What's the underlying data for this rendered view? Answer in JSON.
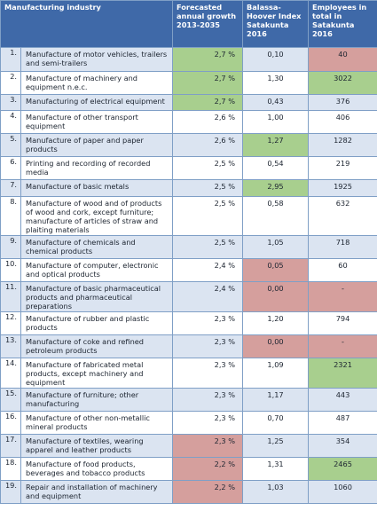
{
  "header": {
    "industry": "Manufacturing industry",
    "growth": "Forecasted annual growth 2013-2035",
    "balassa": "Balassa-Hoover Index Satakunta 2016",
    "employees": "Employees in total in Satakunta 2016"
  },
  "colors": {
    "header_bg": "#3f69a8",
    "highlight_green": "#a8cf8e",
    "highlight_red": "#d59f9d",
    "stripe": "#dbe4f1"
  },
  "rows": [
    {
      "num": "1.",
      "industry": "Manufacture of motor vehicles, trailers and semi-trailers",
      "growth": "2,7 %",
      "balassa": "0,10",
      "employees": "40"
    },
    {
      "num": "2.",
      "industry": "Manufacture of machinery and equipment n.e.c.",
      "growth": "2,7 %",
      "balassa": "1,30",
      "employees": "3022"
    },
    {
      "num": "3.",
      "industry": "Manufacturing of electrical equipment",
      "growth": "2,7 %",
      "balassa": "0,43",
      "employees": "376"
    },
    {
      "num": "4.",
      "industry": "Manufacture of other transport equipment",
      "growth": "2,6 %",
      "balassa": "1,00",
      "employees": "406"
    },
    {
      "num": "5.",
      "industry": "Manufacture of paper and paper products",
      "growth": "2,6 %",
      "balassa": "1,27",
      "employees": "1282"
    },
    {
      "num": "6.",
      "industry": "Printing and recording of recorded media",
      "growth": "2,5 %",
      "balassa": "0,54",
      "employees": "219"
    },
    {
      "num": "7.",
      "industry": "Manufacture of basic metals",
      "growth": "2,5 %",
      "balassa": "2,95",
      "employees": "1925"
    },
    {
      "num": "8.",
      "industry": "Manufacture of wood and of products of wood and cork, except furniture; manufacture of articles of straw and plaiting materials",
      "growth": "2,5 %",
      "balassa": "0,58",
      "employees": "632"
    },
    {
      "num": "9.",
      "industry": "Manufacture of chemicals and chemical products",
      "growth": "2,5 %",
      "balassa": "1,05",
      "employees": "718"
    },
    {
      "num": "10.",
      "industry": "Manufacture of computer, electronic and optical products",
      "growth": "2,4 %",
      "balassa": "0,05",
      "employees": "60"
    },
    {
      "num": "11.",
      "industry": "Manufacture of basic pharmaceutical products and pharmaceutical preparations",
      "growth": "2,4 %",
      "balassa": "0,00",
      "employees": "-"
    },
    {
      "num": "12.",
      "industry": "Manufacture of rubber and plastic products",
      "growth": "2,3 %",
      "balassa": "1,20",
      "employees": "794"
    },
    {
      "num": "13.",
      "industry": "Manufacture of coke and refined petroleum products",
      "growth": "2,3 %",
      "balassa": "0,00",
      "employees": "-"
    },
    {
      "num": "14.",
      "industry": "Manufacture of fabricated metal products, except machinery and equipment",
      "growth": "2,3 %",
      "balassa": "1,09",
      "employees": "2321"
    },
    {
      "num": "15.",
      "industry": "Manufacture of furniture; other manufacturing",
      "growth": "2,3 %",
      "balassa": "1,17",
      "employees": "443"
    },
    {
      "num": "16.",
      "industry": "Manufacture of other non-metallic mineral products",
      "growth": "2,3 %",
      "balassa": "0,70",
      "employees": "487"
    },
    {
      "num": "17.",
      "industry": "Manufacture of textiles, wearing apparel and leather products",
      "growth": "2,3 %",
      "balassa": "1,25",
      "employees": "354"
    },
    {
      "num": "18.",
      "industry": "Manufacture of food products, beverages and tobacco products",
      "growth": "2,2 %",
      "balassa": "1,31",
      "employees": "2465"
    },
    {
      "num": "19.",
      "industry": "Repair and installation of machinery and equipment",
      "growth": "2,2 %",
      "balassa": "1,03",
      "employees": "1060"
    }
  ]
}
